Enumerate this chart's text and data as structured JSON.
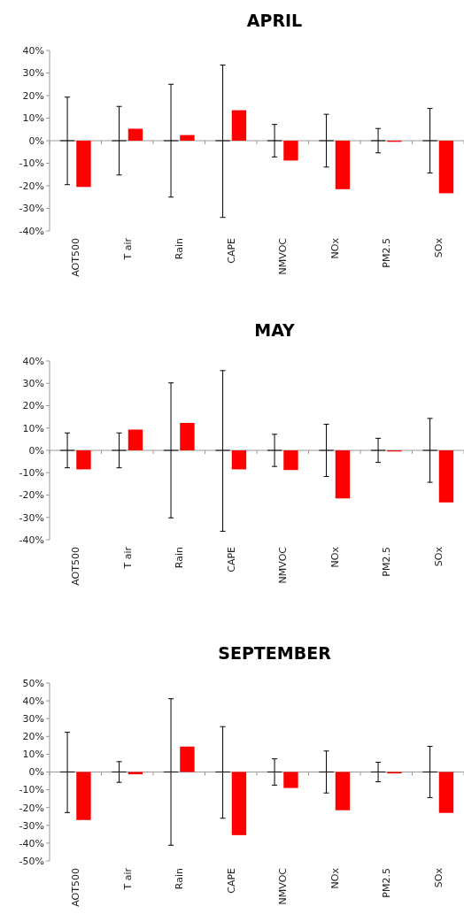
{
  "chart_data": [
    {
      "type": "bar",
      "title": "APRIL",
      "categories": [
        "AOT500",
        "T air",
        "Rain",
        "CAPE",
        "NMVOC",
        "NOx",
        "PM2.5",
        "SOx"
      ],
      "ylim": [
        -40,
        40
      ],
      "yticks": [
        {
          "value": -40,
          "label": "-40%"
        },
        {
          "value": -30,
          "label": "-30%"
        },
        {
          "value": -20,
          "label": "-20%"
        },
        {
          "value": -10,
          "label": "-10%"
        },
        {
          "value": 0,
          "label": "0%"
        },
        {
          "value": 10,
          "label": "10%"
        },
        {
          "value": 20,
          "label": "20%"
        },
        {
          "value": 30,
          "label": "30%"
        },
        {
          "value": 40,
          "label": "40%"
        }
      ],
      "series": [
        {
          "color": "#000000",
          "values": [
            0,
            0,
            0,
            0,
            0,
            0,
            0,
            0
          ],
          "errors": [
            [
              -19.5,
              19.3
            ],
            15.2,
            25,
            [
              -34,
              33.5
            ],
            7.2,
            11.7,
            5.4,
            14.3
          ]
        },
        {
          "color": "#ff0000",
          "values": [
            -20.5,
            5.3,
            2.5,
            13.5,
            -8.8,
            -21.5,
            -0.5,
            -23.3
          ]
        }
      ]
    },
    {
      "type": "bar",
      "title": "MAY",
      "categories": [
        "AOT500",
        "T air",
        "Rain",
        "CAPE",
        "NMVOC",
        "NOx",
        "PM2.5",
        "SOx"
      ],
      "ylim": [
        -40,
        40
      ],
      "yticks": [
        {
          "value": -40,
          "label": "-40%"
        },
        {
          "value": -30,
          "label": "-30%"
        },
        {
          "value": -20,
          "label": "-20%"
        },
        {
          "value": -10,
          "label": "-10%"
        },
        {
          "value": 0,
          "label": "0%"
        },
        {
          "value": 10,
          "label": "10%"
        },
        {
          "value": 20,
          "label": "20%"
        },
        {
          "value": 30,
          "label": "30%"
        },
        {
          "value": 40,
          "label": "40%"
        }
      ],
      "series": [
        {
          "color": "#000000",
          "values": [
            0,
            0,
            0,
            0,
            0,
            0,
            0,
            0
          ],
          "errors": [
            7.8,
            7.8,
            30.2,
            [
              -36.2,
              35.7
            ],
            7.2,
            11.7,
            5.4,
            14.3
          ]
        },
        {
          "color": "#ff0000",
          "values": [
            -8.5,
            9.3,
            12.3,
            -8.5,
            -8.8,
            -21.5,
            -0.5,
            -23.3
          ]
        }
      ]
    },
    {
      "type": "bar",
      "title": "SEPTEMBER",
      "categories": [
        "AOT500",
        "T air",
        "Rain",
        "CAPE",
        "NMVOC",
        "NOx",
        "PM2.5",
        "SOx"
      ],
      "ylim": [
        -50,
        50
      ],
      "yticks": [
        {
          "value": -50,
          "label": "-50%"
        },
        {
          "value": -40,
          "label": "-40%"
        },
        {
          "value": -30,
          "label": "-30%"
        },
        {
          "value": -20,
          "label": "-20%"
        },
        {
          "value": -10,
          "label": "-10%"
        },
        {
          "value": 0,
          "label": "0%"
        },
        {
          "value": 10,
          "label": "10%"
        },
        {
          "value": 20,
          "label": "20%"
        },
        {
          "value": 30,
          "label": "30%"
        },
        {
          "value": 40,
          "label": "40%"
        },
        {
          "value": 50,
          "label": "50%"
        }
      ],
      "series": [
        {
          "color": "#000000",
          "values": [
            0,
            0,
            0,
            0,
            0,
            0,
            0,
            0
          ],
          "errors": [
            [
              -22.8,
              22.3
            ],
            5.8,
            41.2,
            [
              -26,
              25.5
            ],
            7.4,
            11.8,
            5.5,
            14.4
          ]
        },
        {
          "color": "#ff0000",
          "values": [
            -27,
            -1.3,
            14.3,
            -35.5,
            -9,
            -21.5,
            -0.8,
            -23
          ]
        }
      ]
    }
  ]
}
